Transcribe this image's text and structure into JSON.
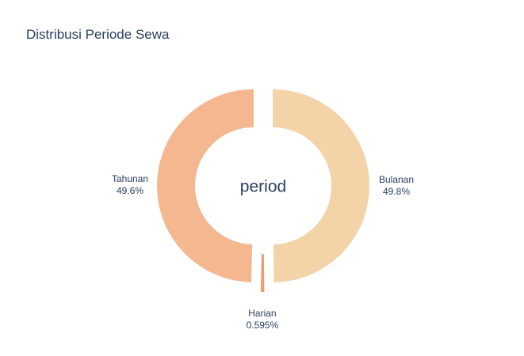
{
  "chart_data": {
    "type": "pie",
    "title": "Distribusi Periode Sewa",
    "center_text": "period",
    "hole": true,
    "slices": [
      {
        "label": "Bulanan",
        "percent_text": "49.8%",
        "value": 49.8,
        "color": "#f5d3a9"
      },
      {
        "label": "Harian",
        "percent_text": "0.595%",
        "value": 0.595,
        "color": "#ee9a72"
      },
      {
        "label": "Tahunan",
        "percent_text": "49.6%",
        "value": 49.6,
        "color": "#f4b78f"
      }
    ]
  }
}
